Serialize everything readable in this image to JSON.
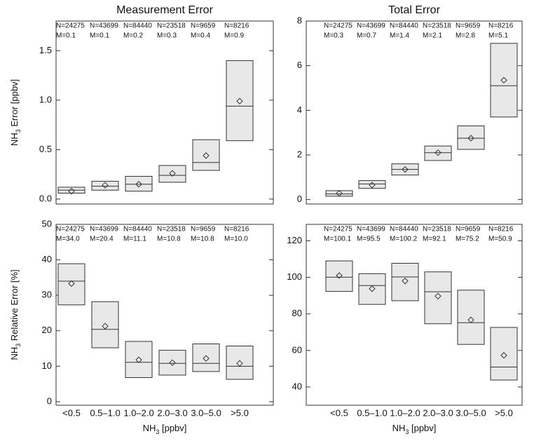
{
  "chart_data": [
    {
      "type": "box",
      "title": "Measurement Error",
      "ylabel": [
        "NH",
        "3",
        " Error [ppbv]"
      ],
      "ylim": [
        -0.05,
        1.8
      ],
      "yticks": [
        {
          "value": 0,
          "label": "0.0"
        },
        0.5,
        {
          "value": 1,
          "label": "1.0"
        },
        1.5
      ],
      "box_color": "#e8e8e8",
      "n_labels": [
        "N=24275",
        "N=43699",
        "N=84440",
        "N=23518",
        "N=9659",
        "N=8216"
      ],
      "m_labels": [
        "M=0.1",
        "M=0.1",
        "M=0.2",
        "M=0.3",
        "M=0.4",
        "M=0.9"
      ],
      "boxes": [
        {
          "q1": 0.06,
          "median": 0.09,
          "q3": 0.12,
          "mean": 0.08
        },
        {
          "q1": 0.09,
          "median": 0.13,
          "q3": 0.18,
          "mean": 0.14
        },
        {
          "q1": 0.08,
          "median": 0.15,
          "q3": 0.23,
          "mean": 0.15
        },
        {
          "q1": 0.17,
          "median": 0.24,
          "q3": 0.34,
          "mean": 0.26
        },
        {
          "q1": 0.29,
          "median": 0.37,
          "q3": 0.6,
          "mean": 0.44
        },
        {
          "q1": 0.59,
          "median": 0.94,
          "q3": 1.4,
          "mean": 0.99
        }
      ]
    },
    {
      "type": "box",
      "title": "Total Error",
      "ylim": [
        -0.2,
        8
      ],
      "yticks": [
        0,
        2,
        4,
        6,
        8
      ],
      "box_color": "#e8e8e8",
      "n_labels": [
        "N=24275",
        "N=43699",
        "N=84440",
        "N=23518",
        "N=9659",
        "N=8216"
      ],
      "m_labels": [
        "M=0.3",
        "M=0.7",
        "M=1.4",
        "M=2.1",
        "M=2.8",
        "M=5.1"
      ],
      "boxes": [
        {
          "q1": 0.15,
          "median": 0.25,
          "q3": 0.4,
          "mean": 0.28
        },
        {
          "q1": 0.5,
          "median": 0.7,
          "q3": 0.85,
          "mean": 0.65
        },
        {
          "q1": 1.1,
          "median": 1.35,
          "q3": 1.6,
          "mean": 1.35
        },
        {
          "q1": 1.75,
          "median": 2.1,
          "q3": 2.4,
          "mean": 2.1
        },
        {
          "q1": 2.25,
          "median": 2.75,
          "q3": 3.3,
          "mean": 2.75
        },
        {
          "q1": 3.7,
          "median": 5.1,
          "q3": 7.0,
          "mean": 5.35
        }
      ]
    },
    {
      "type": "box",
      "ylabel": [
        "NH",
        "3",
        " Relative Error [%]"
      ],
      "xlabel": [
        "NH",
        "3",
        " [ppbv]"
      ],
      "categories": [
        "<0.5",
        "0.5–1.0",
        "1.0–2.0",
        "2.0–3.0",
        "3.0–5.0",
        ">5.0"
      ],
      "ylim": [
        -1,
        50
      ],
      "yticks": [
        0,
        10,
        20,
        30,
        40,
        50
      ],
      "box_color": "#e8e8e8",
      "n_labels": [
        "N=24275",
        "N=43699",
        "N=84440",
        "N=23518",
        "N=9659",
        "N=8216"
      ],
      "m_labels": [
        "M=34.0",
        "M=20.4",
        "M=11.1",
        "M=10.8",
        "M=10.8",
        "M=10.0"
      ],
      "boxes": [
        {
          "q1": 27.3,
          "median": 34.0,
          "q3": 38.9,
          "mean": 33.3
        },
        {
          "q1": 15.2,
          "median": 20.4,
          "q3": 28.2,
          "mean": 21.3
        },
        {
          "q1": 6.8,
          "median": 11.1,
          "q3": 17.0,
          "mean": 11.8
        },
        {
          "q1": 7.5,
          "median": 10.8,
          "q3": 14.5,
          "mean": 11.0
        },
        {
          "q1": 8.5,
          "median": 10.8,
          "q3": 16.3,
          "mean": 12.2
        },
        {
          "q1": 6.3,
          "median": 10.0,
          "q3": 15.7,
          "mean": 10.8
        }
      ]
    },
    {
      "type": "box",
      "xlabel": [
        "NH",
        "3",
        " [ppbv]"
      ],
      "categories": [
        "<0.5",
        "0.5–1.0",
        "1.0–2.0",
        "2.0–3.0",
        "3.0–5.0",
        ">5.0"
      ],
      "ylim": [
        30,
        129
      ],
      "yticks": [
        40,
        60,
        80,
        100,
        120
      ],
      "box_color": "#e8e8e8",
      "n_labels": [
        "N=24275",
        "N=43699",
        "N=84440",
        "N=23518",
        "N=9659",
        "N=8216"
      ],
      "m_labels": [
        "M=100.1",
        "M=95.5",
        "M=100.2",
        "M=92.1",
        "M=75.2",
        "M=50.9"
      ],
      "boxes": [
        {
          "q1": 92.3,
          "median": 100.1,
          "q3": 109,
          "mean": 101
        },
        {
          "q1": 85.2,
          "median": 95.5,
          "q3": 102,
          "mean": 93.8
        },
        {
          "q1": 87.2,
          "median": 100.2,
          "q3": 107.7,
          "mean": 98
        },
        {
          "q1": 74.6,
          "median": 92.1,
          "q3": 103,
          "mean": 89.7
        },
        {
          "q1": 63.3,
          "median": 75.2,
          "q3": 93,
          "mean": 76.7
        },
        {
          "q1": 43.8,
          "median": 50.9,
          "q3": 72.6,
          "mean": 57.3
        }
      ]
    }
  ]
}
